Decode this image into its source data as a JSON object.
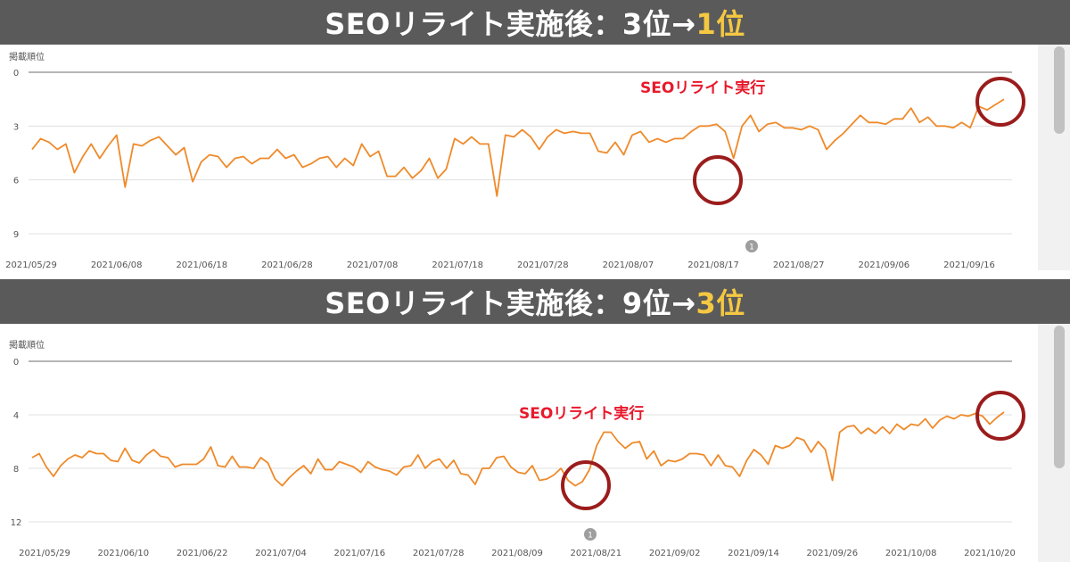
{
  "banners": [
    {
      "prefix": "SEOリライト実施後：3位→",
      "highlight": "1位"
    },
    {
      "prefix": "SEOリライト実施後：9位→",
      "highlight": "3位"
    }
  ],
  "colors": {
    "banner_bg": "#5a5a5a",
    "highlight": "#f5c842",
    "line": "#ef8a2a",
    "annotation": "#e8192c",
    "circle": "#9b1c1c",
    "grid": "#e0e0e0",
    "axis_text": "#555555"
  },
  "chart_data": [
    {
      "type": "line",
      "ylabel": "掲載順位",
      "y_inverted": true,
      "ylim": [
        0,
        9
      ],
      "yticks": [
        0,
        3,
        6,
        9
      ],
      "xtick_labels": [
        "2021/05/29",
        "2021/06/08",
        "2021/06/18",
        "2021/06/28",
        "2021/07/08",
        "2021/07/18",
        "2021/07/28",
        "2021/08/07",
        "2021/08/17",
        "2021/08/27",
        "2021/09/06",
        "2021/09/16"
      ],
      "annotation_text": "SEOリライト実行",
      "marker_label": "1",
      "series": [
        {
          "values": [
            4.3,
            3.7,
            3.9,
            4.3,
            4.0,
            5.6,
            4.7,
            4.0,
            4.8,
            4.1,
            3.5,
            6.4,
            4.0,
            4.1,
            3.8,
            3.6,
            4.1,
            4.6,
            4.2,
            6.1,
            5.0,
            4.6,
            4.7,
            5.3,
            4.8,
            4.7,
            5.1,
            4.8,
            4.8,
            4.3,
            4.8,
            4.6,
            5.3,
            5.1,
            4.8,
            4.7,
            5.3,
            4.8,
            5.2,
            4.0,
            4.7,
            4.4,
            5.8,
            5.8,
            5.3,
            5.9,
            5.5,
            4.8,
            5.9,
            5.4,
            3.7,
            4.0,
            3.6,
            4.0,
            4.0,
            6.9,
            3.5,
            3.6,
            3.2,
            3.6,
            4.3,
            3.6,
            3.2,
            3.4,
            3.3,
            3.4,
            3.4,
            4.4,
            4.5,
            3.9,
            4.6,
            3.5,
            3.3,
            3.9,
            3.7,
            3.9,
            3.7,
            3.7,
            3.3,
            3.0,
            3.0,
            2.9,
            3.3,
            4.8,
            3.0,
            2.4,
            3.3,
            2.9,
            2.8,
            3.1,
            3.1,
            3.2,
            3.0,
            3.2,
            4.3,
            3.8,
            3.4,
            2.9,
            2.4,
            2.8,
            2.8,
            2.9,
            2.6,
            2.6,
            2.0,
            2.8,
            2.5,
            3.0,
            3.0,
            3.1,
            2.8,
            3.1,
            1.9,
            2.1,
            1.8,
            1.5
          ]
        }
      ]
    },
    {
      "type": "line",
      "ylabel": "掲載順位",
      "y_inverted": true,
      "ylim": [
        0,
        12
      ],
      "yticks": [
        0,
        4,
        8,
        12
      ],
      "xtick_labels": [
        "2021/05/29",
        "2021/06/10",
        "2021/06/22",
        "2021/07/04",
        "2021/07/16",
        "2021/07/28",
        "2021/08/09",
        "2021/08/21",
        "2021/09/02",
        "2021/09/14",
        "2021/09/26",
        "2021/10/08",
        "2021/10/20"
      ],
      "annotation_text": "SEOリライト実行",
      "marker_label": "1",
      "series": [
        {
          "values": [
            7.2,
            6.9,
            7.9,
            8.6,
            7.8,
            7.3,
            7.0,
            7.2,
            6.7,
            6.9,
            6.9,
            7.4,
            7.5,
            6.5,
            7.4,
            7.6,
            7.0,
            6.6,
            7.1,
            7.2,
            7.9,
            7.7,
            7.7,
            7.7,
            7.3,
            6.4,
            7.8,
            7.9,
            7.1,
            7.9,
            7.9,
            8.0,
            7.2,
            7.6,
            8.8,
            9.3,
            8.7,
            8.2,
            7.8,
            8.4,
            7.3,
            8.1,
            8.1,
            7.5,
            7.7,
            7.9,
            8.3,
            7.5,
            7.9,
            8.1,
            8.2,
            8.5,
            7.9,
            7.8,
            7.0,
            8.0,
            7.5,
            7.3,
            8.0,
            7.4,
            8.4,
            8.5,
            9.2,
            8.0,
            8.0,
            7.2,
            7.1,
            7.9,
            8.3,
            8.4,
            7.8,
            8.9,
            8.8,
            8.5,
            8.0,
            8.9,
            9.3,
            9.0,
            8.1,
            6.3,
            5.3,
            5.3,
            6.0,
            6.5,
            6.1,
            6.0,
            7.3,
            6.7,
            7.8,
            7.4,
            7.5,
            7.3,
            6.9,
            6.9,
            7.0,
            7.8,
            7.0,
            7.8,
            7.9,
            8.6,
            7.4,
            6.6,
            7.0,
            7.7,
            6.3,
            6.5,
            6.3,
            5.7,
            5.9,
            6.8,
            6.0,
            6.6,
            8.9,
            5.3,
            4.9,
            4.8,
            5.4,
            5.0,
            5.4,
            4.9,
            5.4,
            4.7,
            5.1,
            4.7,
            4.8,
            4.3,
            5.0,
            4.4,
            4.1,
            4.3,
            4.0,
            4.1,
            3.9,
            4.1,
            4.7,
            4.2,
            3.8
          ]
        }
      ]
    }
  ]
}
